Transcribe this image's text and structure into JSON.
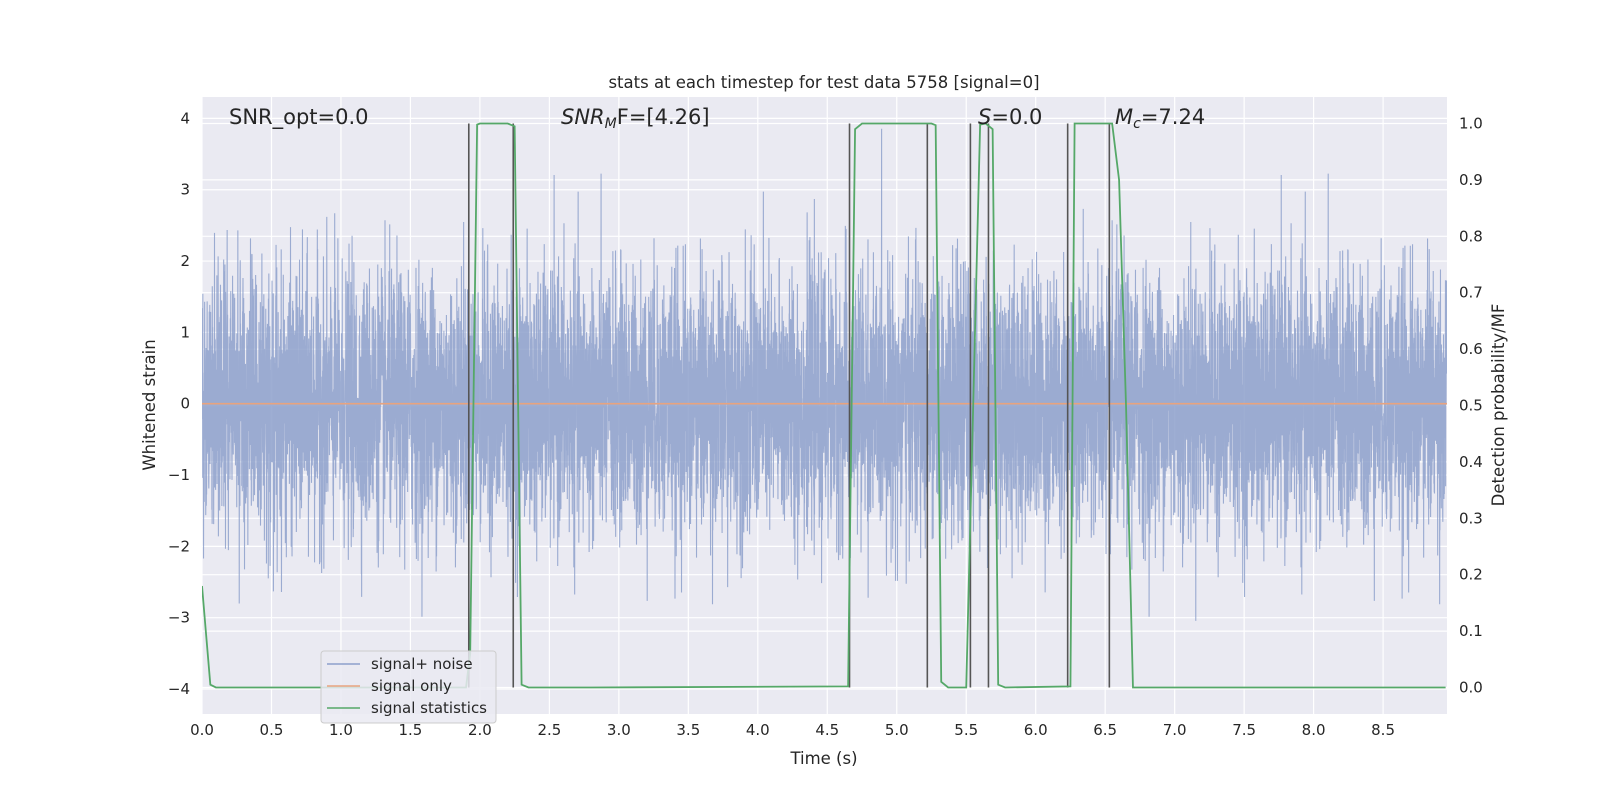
{
  "chart_data": {
    "type": "line",
    "title": "stats at each timestep for test data 5758 [signal=0]",
    "xlabel": "Time (s)",
    "ylabel_left": "Whitened strain",
    "ylabel_right": "Detection probability/MF",
    "xlim": [
      0.0,
      8.96
    ],
    "ylim_left": [
      -4.35,
      4.3
    ],
    "ylim_right": [
      -0.047,
      1.047
    ],
    "x_ticks": [
      "0.0",
      "0.5",
      "1.0",
      "1.5",
      "2.0",
      "2.5",
      "3.0",
      "3.5",
      "4.0",
      "4.5",
      "5.0",
      "5.5",
      "6.0",
      "6.5",
      "7.0",
      "7.5",
      "8.0",
      "8.5"
    ],
    "y_ticks_left": [
      "−4",
      "−3",
      "−2",
      "−1",
      "0",
      "1",
      "2",
      "3",
      "4"
    ],
    "y_ticks_right": [
      "0.0",
      "0.1",
      "0.2",
      "0.3",
      "0.4",
      "0.5",
      "0.6",
      "0.7",
      "0.8",
      "0.9",
      "1.0"
    ],
    "grid": true,
    "legend_position": "lower-left",
    "annotations": {
      "snr_opt": "SNR_opt=0.0",
      "snr_mf_main": "SNR",
      "snr_mf_sub": "M",
      "snr_mf_rest": "F=[4.26]",
      "s_main": "S",
      "s_rest": "=0.0",
      "mc_main": "M",
      "mc_sub": "c",
      "mc_rest": "=7.24"
    },
    "series": [
      {
        "name": "signal+ noise",
        "color": "#8da0cb",
        "description_axis": "left",
        "noise_std": 0.9,
        "sample_rate_hz": 1000
      },
      {
        "name": "signal only",
        "color": "#e8a37f",
        "axis": "left",
        "constant_value": 0.0
      },
      {
        "name": "signal statistics",
        "color": "#55a868",
        "axis": "right",
        "x": [
          0.0,
          0.06,
          0.1,
          0.2,
          1.9,
          1.93,
          1.98,
          2.0,
          2.2,
          2.25,
          2.3,
          2.35,
          2.8,
          4.65,
          4.7,
          4.75,
          5.25,
          5.28,
          5.32,
          5.37,
          5.5,
          5.6,
          5.64,
          5.69,
          5.73,
          5.78,
          6.25,
          6.28,
          6.32,
          6.55,
          6.6,
          6.65,
          6.7,
          8.95
        ],
        "values": [
          0.18,
          0.005,
          0.0,
          0.0,
          0.0,
          0.06,
          0.998,
          1.0,
          1.0,
          0.995,
          0.005,
          0.0,
          0.0,
          0.002,
          0.99,
          1.0,
          1.0,
          0.997,
          0.01,
          0.0,
          0.0,
          0.998,
          1.0,
          0.99,
          0.005,
          0.0,
          0.002,
          1.0,
          1.0,
          1.0,
          0.9,
          0.5,
          0.0,
          0.0
        ]
      }
    ],
    "vertical_lines": {
      "color": "#555555",
      "x": [
        1.92,
        2.24,
        4.66,
        5.22,
        5.53,
        5.66,
        6.23,
        6.53
      ],
      "ymin_right": 0.0,
      "ymax_right": 1.0
    },
    "legend": [
      {
        "label": "signal+ noise",
        "color": "#8da0cb"
      },
      {
        "label": "signal only",
        "color": "#e8a37f"
      },
      {
        "label": "signal statistics",
        "color": "#55a868"
      }
    ]
  }
}
